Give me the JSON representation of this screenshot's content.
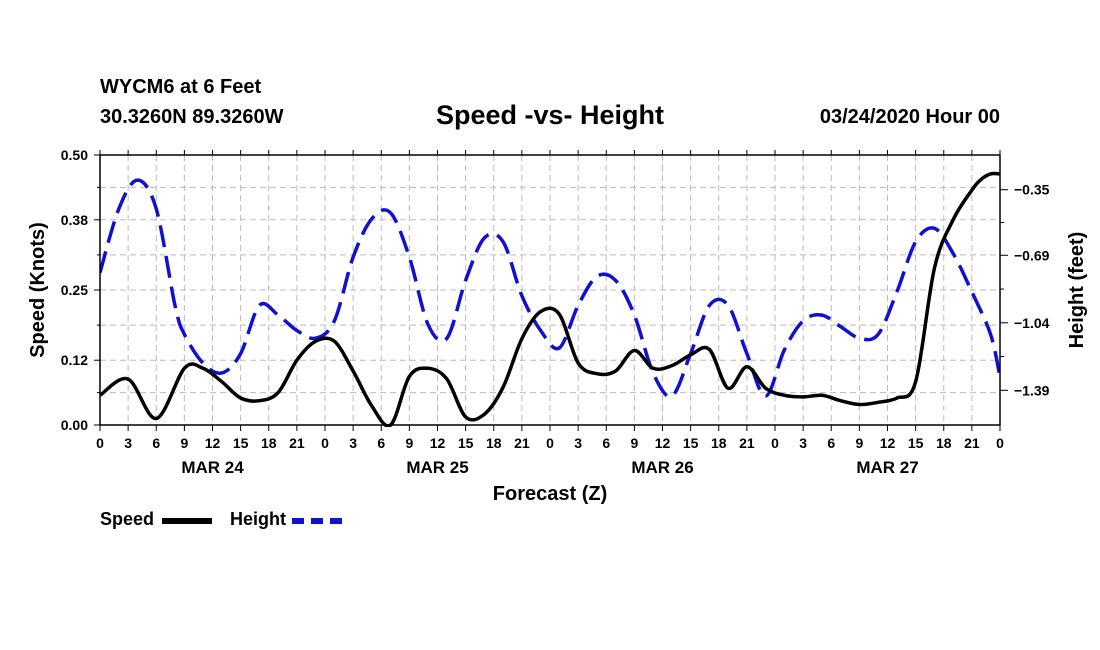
{
  "header": {
    "station": "WYCM6 at 6 Feet",
    "coords": "30.3260N 89.3260W",
    "title": "Speed -vs- Height",
    "run": "03/24/2020 Hour 00"
  },
  "colors": {
    "speed": "#000000",
    "height": "#1010d0",
    "grid": "#bbbbbb"
  },
  "legend": {
    "speed": "Speed",
    "height": "Height"
  },
  "chart_data": {
    "type": "line",
    "xlabel": "Forecast (Z)",
    "ylabel_left": "Speed (Knots)",
    "ylabel_right": "Height (feet)",
    "x_hours_range": [
      0,
      96
    ],
    "x_tick_labels": [
      "0",
      "3",
      "6",
      "9",
      "12",
      "15",
      "18",
      "21",
      "0",
      "3",
      "6",
      "9",
      "12",
      "15",
      "18",
      "21",
      "0",
      "3",
      "6",
      "9",
      "12",
      "15",
      "18",
      "21",
      "0",
      "3",
      "6",
      "9",
      "12",
      "15",
      "18",
      "21",
      "0"
    ],
    "day_labels": [
      {
        "label": "MAR 24",
        "hour": 12
      },
      {
        "label": "MAR 25",
        "hour": 36
      },
      {
        "label": "MAR 26",
        "hour": 60
      },
      {
        "label": "MAR 27",
        "hour": 84
      }
    ],
    "ylim_left": [
      0,
      0.5
    ],
    "yticks_left": [
      0.0,
      0.12,
      0.25,
      0.38,
      0.5
    ],
    "ytick_labels_left": [
      "0.00",
      "0.12",
      "0.25",
      "0.38",
      "0.50"
    ],
    "ylim_right": [
      -1.57,
      -0.17
    ],
    "yticks_right": [
      -1.39,
      -1.04,
      -0.69,
      -0.35
    ],
    "ytick_labels_right": [
      "−1.39",
      "−1.04",
      "−0.69",
      "−0.35"
    ],
    "series": [
      {
        "name": "Speed",
        "axis": "left",
        "style": "solid",
        "x": [
          0,
          3,
          6,
          9,
          11,
          13,
          15,
          17,
          19,
          21,
          23,
          25,
          27,
          29,
          31,
          33,
          35,
          37,
          39,
          41,
          43,
          45,
          47,
          49,
          51,
          53,
          55,
          57,
          59,
          61,
          63,
          65,
          67,
          69,
          71,
          73,
          75,
          77,
          79,
          81,
          83,
          85,
          87,
          89,
          91,
          93,
          94,
          95,
          96
        ],
        "y": [
          0.055,
          0.085,
          0.012,
          0.105,
          0.105,
          0.08,
          0.05,
          0.045,
          0.06,
          0.12,
          0.155,
          0.155,
          0.1,
          0.035,
          0.0,
          0.09,
          0.105,
          0.085,
          0.015,
          0.02,
          0.07,
          0.16,
          0.21,
          0.205,
          0.115,
          0.095,
          0.1,
          0.138,
          0.105,
          0.11,
          0.13,
          0.14,
          0.068,
          0.108,
          0.068,
          0.055,
          0.052,
          0.055,
          0.045,
          0.038,
          0.042,
          0.05,
          0.08,
          0.29,
          0.38,
          0.435,
          0.455,
          0.465,
          0.465
        ]
      },
      {
        "name": "Height",
        "axis": "right",
        "style": "dashed",
        "x": [
          0,
          2,
          4,
          6,
          8,
          9,
          11,
          13,
          15,
          17,
          19,
          21,
          23,
          25,
          27,
          29,
          31,
          33,
          35,
          37,
          39,
          41,
          43,
          45,
          47,
          49,
          51,
          53,
          55,
          57,
          59,
          61,
          63,
          65,
          67,
          69,
          71,
          73,
          75,
          77,
          79,
          81,
          83,
          85,
          87,
          89,
          91,
          93,
          95,
          96
        ],
        "y": [
          -0.78,
          -0.45,
          -0.3,
          -0.45,
          -0.95,
          -1.1,
          -1.25,
          -1.3,
          -1.2,
          -0.95,
          -1.0,
          -1.08,
          -1.12,
          -1.03,
          -0.7,
          -0.5,
          -0.47,
          -0.7,
          -1.05,
          -1.12,
          -0.82,
          -0.6,
          -0.62,
          -0.9,
          -1.08,
          -1.17,
          -0.95,
          -0.8,
          -0.82,
          -1.0,
          -1.3,
          -1.42,
          -1.2,
          -0.95,
          -0.95,
          -1.2,
          -1.42,
          -1.18,
          -1.03,
          -1.0,
          -1.06,
          -1.12,
          -1.1,
          -0.88,
          -0.62,
          -0.55,
          -0.68,
          -0.88,
          -1.1,
          -1.32
        ]
      }
    ]
  }
}
